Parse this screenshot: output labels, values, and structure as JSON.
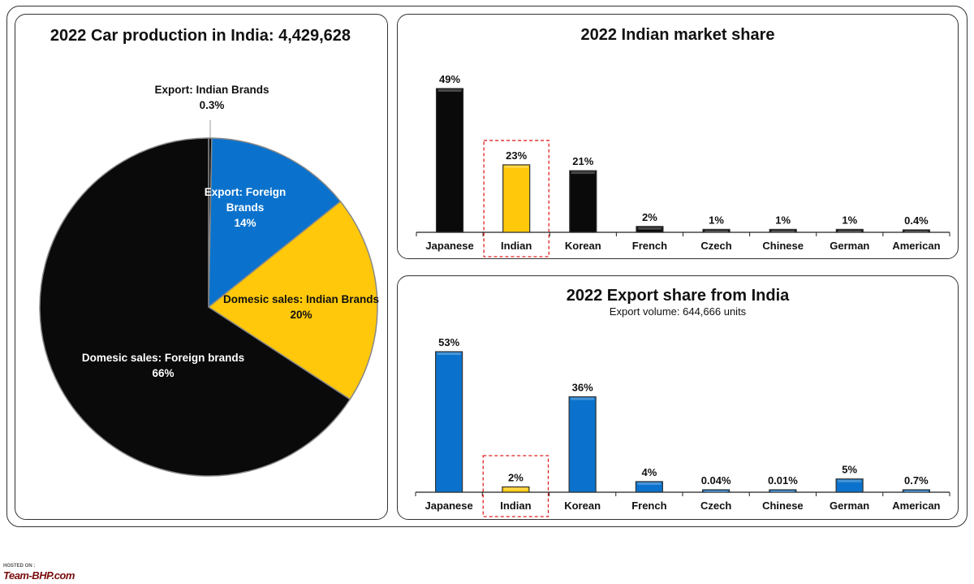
{
  "colors": {
    "black": "#0a0a0a",
    "blue": "#0a72cc",
    "yellow": "#ffc80a",
    "highlight": "#e02020"
  },
  "watermark": {
    "hosted_on": "HOSTED ON :",
    "brand": "Team-BHP.com"
  },
  "chart_data": [
    {
      "type": "pie",
      "title": "2022 Car production in India: 4,429,628",
      "slices": [
        {
          "label_line1": "Export: Indian Brands",
          "label_line2": "",
          "pct_label": "0.3%",
          "value": 0.3,
          "color": "#0a0a0a"
        },
        {
          "label_line1": "Export: Foreign",
          "label_line2": "Brands",
          "pct_label": "14%",
          "value": 14,
          "color": "#0a72cc"
        },
        {
          "label_line1": "Domesic sales: Indian Brands",
          "label_line2": "",
          "pct_label": "20%",
          "value": 20,
          "color": "#ffc80a"
        },
        {
          "label_line1": "Domesic sales: Foreign brands",
          "label_line2": "",
          "pct_label": "66%",
          "value": 66,
          "color": "#0a0a0a"
        }
      ]
    },
    {
      "type": "bar",
      "title": "2022 Indian market share",
      "subtitle": "",
      "categories": [
        "Japanese",
        "Indian",
        "Korean",
        "French",
        "Czech",
        "Chinese",
        "German",
        "American"
      ],
      "values": [
        49,
        23,
        21,
        2,
        1,
        1,
        1,
        0.4
      ],
      "value_labels": [
        "49%",
        "23%",
        "21%",
        "2%",
        "1%",
        "1%",
        "1%",
        "0.4%"
      ],
      "bar_colors": [
        "#0a0a0a",
        "#ffc80a",
        "#0a0a0a",
        "#0a0a0a",
        "#0a0a0a",
        "#0a0a0a",
        "#0a0a0a",
        "#0a0a0a"
      ],
      "highlight_category": "Indian",
      "ylim": [
        0,
        49
      ]
    },
    {
      "type": "bar",
      "title": "2022 Export share from India",
      "subtitle": "Export volume: 644,666 units",
      "categories": [
        "Japanese",
        "Indian",
        "Korean",
        "French",
        "Czech",
        "Chinese",
        "German",
        "American"
      ],
      "values": [
        53,
        2,
        36,
        4,
        0.04,
        0.01,
        5,
        0.7
      ],
      "value_labels": [
        "53%",
        "2%",
        "36%",
        "4%",
        "0.04%",
        "0.01%",
        "5%",
        "0.7%"
      ],
      "bar_colors": [
        "#0a72cc",
        "#ffc80a",
        "#0a72cc",
        "#0a72cc",
        "#0a72cc",
        "#0a72cc",
        "#0a72cc",
        "#0a72cc"
      ],
      "highlight_category": "Indian",
      "ylim": [
        0,
        53
      ]
    }
  ]
}
